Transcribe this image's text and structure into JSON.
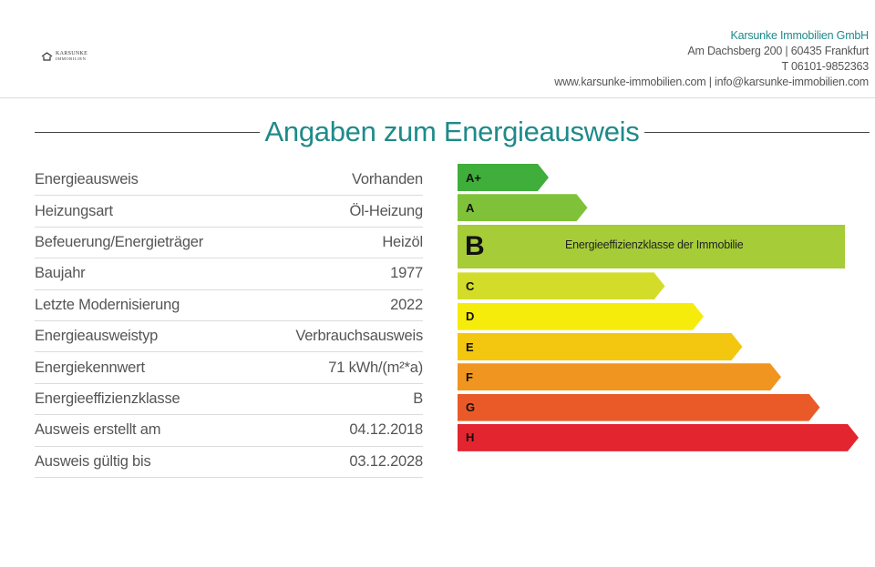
{
  "header": {
    "logo": {
      "name": "KARSUNKE",
      "sub": "IMMOBILIEN"
    },
    "contact": {
      "company": "Karsunke Immobilien GmbH",
      "address": "Am Dachsberg 200 | 60435 Frankfurt",
      "phone": "T 06101-9852363",
      "web": "www.karsunke-immobilien.com | info@karsunke-immobilien.com"
    }
  },
  "title": "Angaben zum Energieausweis",
  "info": [
    {
      "label": "Energieausweis",
      "value": "Vorhanden"
    },
    {
      "label": "Heizungsart",
      "value": "Öl-Heizung"
    },
    {
      "label": "Befeuerung/Energieträger",
      "value": "Heizöl"
    },
    {
      "label": "Baujahr",
      "value": "1977"
    },
    {
      "label": "Letzte Modernisierung",
      "value": "2022"
    },
    {
      "label": "Energieausweistyp",
      "value": "Verbrauchsausweis"
    },
    {
      "label": "Energiekennwert",
      "value": "71 kWh/(m²*a)"
    },
    {
      "label": "Energieeffizienzklasse",
      "value": "B"
    },
    {
      "label": "Ausweis erstellt am",
      "value": "04.12.2018"
    },
    {
      "label": "Ausweis gültig bis",
      "value": "03.12.2028"
    }
  ],
  "scale": {
    "classes": [
      {
        "label": "A+",
        "color": "#3fae3a"
      },
      {
        "label": "A",
        "color": "#7fc239"
      },
      {
        "label": "B",
        "color": "#a6cc38"
      },
      {
        "label": "C",
        "color": "#d4dc2a"
      },
      {
        "label": "D",
        "color": "#f6ec0c"
      },
      {
        "label": "E",
        "color": "#f3c70f"
      },
      {
        "label": "F",
        "color": "#f0951f"
      },
      {
        "label": "G",
        "color": "#ea5a28"
      },
      {
        "label": "H",
        "color": "#e32530"
      }
    ],
    "selected": "B",
    "selected_note": "Energieeffizienzklasse der Immobilie"
  }
}
